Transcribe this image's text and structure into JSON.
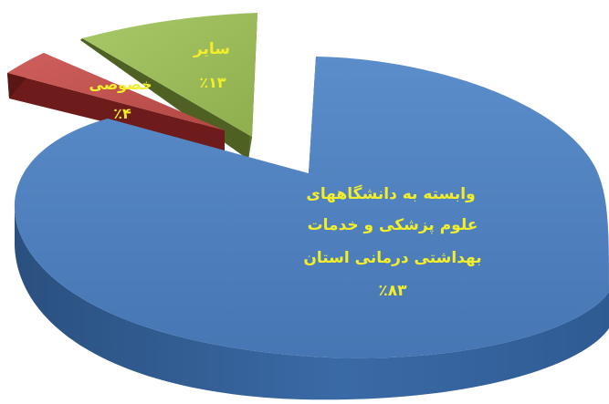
{
  "chart_data": {
    "type": "pie",
    "style": "3d-exploded",
    "title": "",
    "legend": "none",
    "slices": [
      {
        "label_lines": [
          "وابسته به دانشگاههای",
          "علوم پزشکی و خدمات",
          "بهداشتی درمانی استان"
        ],
        "value_label": "٪۸۳",
        "value": 83,
        "color": "#4f81bd",
        "side_color": "#2f5b93"
      },
      {
        "label_lines": [
          "خصوصی"
        ],
        "value_label": "٪۴",
        "value": 4,
        "color": "#c0504d",
        "side_color": "#6e1c1b"
      },
      {
        "label_lines": [
          "سایر"
        ],
        "value_label": "٪۱۳",
        "value": 13,
        "color": "#9bbb59",
        "side_color": "#4f6124"
      }
    ]
  }
}
